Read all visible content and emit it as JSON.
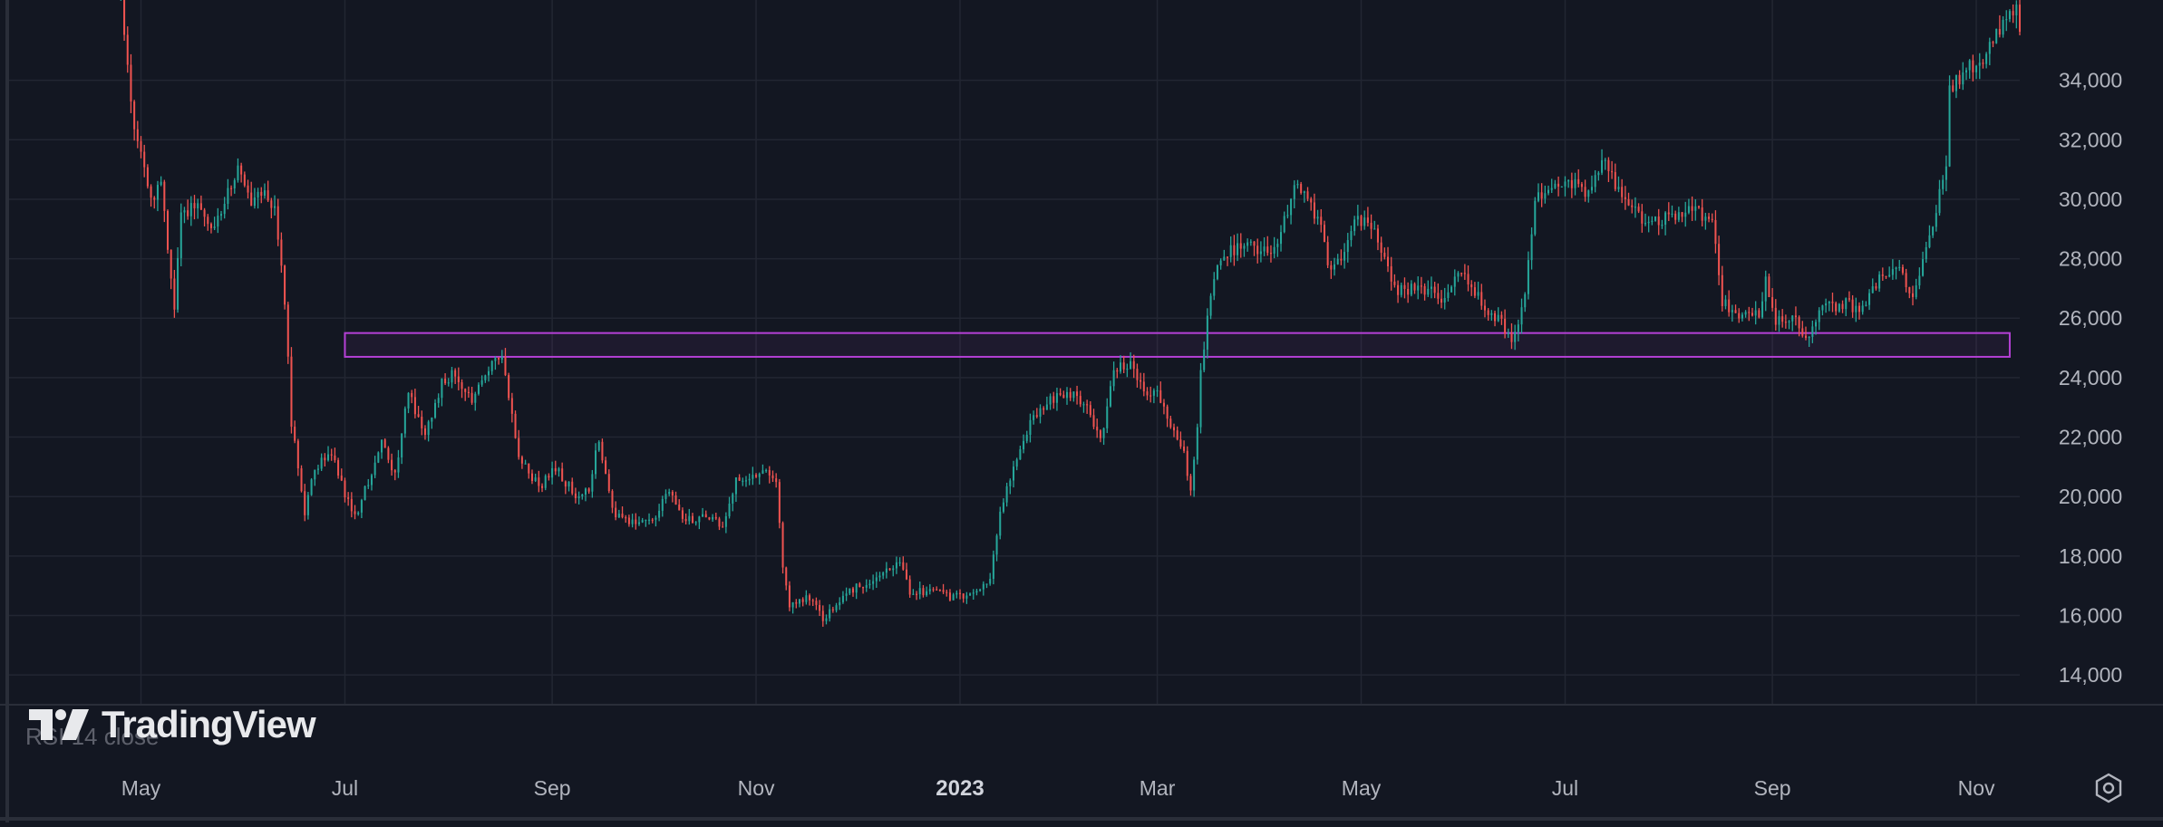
{
  "watermark": {
    "logo_icon": "tradingview-logo-icon",
    "text": "TradingView"
  },
  "indicator_label": "RSI 14 close",
  "colors": {
    "background": "#131722",
    "grid": "#222632",
    "up": "#26a69a",
    "down": "#ef5350",
    "zone": "#b540d6",
    "axis_text": "#b2b5be"
  },
  "settings_icon": "settings-hexagon-icon",
  "chart_data": {
    "type": "candlestick",
    "title": "",
    "xlabel": "",
    "ylabel": "",
    "x_range": [
      "2022-03-22",
      "2023-11-14"
    ],
    "ylim": [
      13000,
      36700
    ],
    "y_ticks": [
      14000,
      16000,
      18000,
      20000,
      22000,
      24000,
      26000,
      28000,
      30000,
      32000,
      34000
    ],
    "y_tick_labels": [
      "14,000",
      "16,000",
      "18,000",
      "20,000",
      "22,000",
      "24,000",
      "26,000",
      "28,000",
      "30,000",
      "32,000",
      "34,000"
    ],
    "x_ticks": [
      {
        "date": "2022-05-01",
        "label": "May",
        "bold": false
      },
      {
        "date": "2022-07-01",
        "label": "Jul",
        "bold": false
      },
      {
        "date": "2022-09-01",
        "label": "Sep",
        "bold": false
      },
      {
        "date": "2022-11-01",
        "label": "Nov",
        "bold": false
      },
      {
        "date": "2023-01-01",
        "label": "2023",
        "bold": true
      },
      {
        "date": "2023-03-01",
        "label": "Mar",
        "bold": false
      },
      {
        "date": "2023-05-01",
        "label": "May",
        "bold": false
      },
      {
        "date": "2023-07-01",
        "label": "Jul",
        "bold": false
      },
      {
        "date": "2023-09-01",
        "label": "Sep",
        "bold": false
      },
      {
        "date": "2023-11-01",
        "label": "Nov",
        "bold": false
      }
    ],
    "grid": true,
    "close_path": [
      [
        "2022-04-25",
        36800
      ],
      [
        "2022-04-28",
        33000
      ],
      [
        "2022-05-01",
        31500
      ],
      [
        "2022-05-04",
        30000
      ],
      [
        "2022-05-07",
        30500
      ],
      [
        "2022-05-09",
        28500
      ],
      [
        "2022-05-11",
        26500
      ],
      [
        "2022-05-13",
        29500
      ],
      [
        "2022-05-18",
        29800
      ],
      [
        "2022-05-22",
        28800
      ],
      [
        "2022-05-26",
        30000
      ],
      [
        "2022-05-30",
        31000
      ],
      [
        "2022-06-03",
        30000
      ],
      [
        "2022-06-07",
        30200
      ],
      [
        "2022-06-10",
        29800
      ],
      [
        "2022-06-13",
        26500
      ],
      [
        "2022-06-15",
        22500
      ],
      [
        "2022-06-17",
        21000
      ],
      [
        "2022-06-19",
        19500
      ],
      [
        "2022-06-22",
        21000
      ],
      [
        "2022-06-27",
        21500
      ],
      [
        "2022-07-01",
        20000
      ],
      [
        "2022-07-04",
        19300
      ],
      [
        "2022-07-08",
        20500
      ],
      [
        "2022-07-12",
        21800
      ],
      [
        "2022-07-16",
        20800
      ],
      [
        "2022-07-20",
        23500
      ],
      [
        "2022-07-25",
        22000
      ],
      [
        "2022-07-30",
        23800
      ],
      [
        "2022-08-03",
        24200
      ],
      [
        "2022-08-08",
        23200
      ],
      [
        "2022-08-12",
        24000
      ],
      [
        "2022-08-15",
        24600
      ],
      [
        "2022-08-17",
        24800
      ],
      [
        "2022-08-19",
        23500
      ],
      [
        "2022-08-22",
        21400
      ],
      [
        "2022-08-28",
        20300
      ],
      [
        "2022-09-02",
        21000
      ],
      [
        "2022-09-08",
        20000
      ],
      [
        "2022-09-12",
        20200
      ],
      [
        "2022-09-15",
        22000
      ],
      [
        "2022-09-19",
        19500
      ],
      [
        "2022-09-25",
        19100
      ],
      [
        "2022-10-02",
        19300
      ],
      [
        "2022-10-06",
        20300
      ],
      [
        "2022-10-10",
        19200
      ],
      [
        "2022-10-16",
        19300
      ],
      [
        "2022-10-22",
        19100
      ],
      [
        "2022-10-26",
        20500
      ],
      [
        "2022-10-30",
        20700
      ],
      [
        "2022-11-04",
        21000
      ],
      [
        "2022-11-07",
        20500
      ],
      [
        "2022-11-09",
        17500
      ],
      [
        "2022-11-11",
        16300
      ],
      [
        "2022-11-17",
        16600
      ],
      [
        "2022-11-21",
        15900
      ],
      [
        "2022-11-26",
        16500
      ],
      [
        "2022-12-01",
        17000
      ],
      [
        "2022-12-06",
        17100
      ],
      [
        "2022-12-14",
        17800
      ],
      [
        "2022-12-17",
        16800
      ],
      [
        "2022-12-24",
        16800
      ],
      [
        "2022-12-30",
        16600
      ],
      [
        "2023-01-05",
        16800
      ],
      [
        "2023-01-10",
        17200
      ],
      [
        "2023-01-13",
        19500
      ],
      [
        "2023-01-17",
        21000
      ],
      [
        "2023-01-22",
        22500
      ],
      [
        "2023-01-28",
        23200
      ],
      [
        "2023-02-02",
        23500
      ],
      [
        "2023-02-08",
        23100
      ],
      [
        "2023-02-12",
        21800
      ],
      [
        "2023-02-16",
        24200
      ],
      [
        "2023-02-21",
        24500
      ],
      [
        "2023-02-25",
        23400
      ],
      [
        "2023-03-01",
        23500
      ],
      [
        "2023-03-05",
        22400
      ],
      [
        "2023-03-09",
        21600
      ],
      [
        "2023-03-11",
        20100
      ],
      [
        "2023-03-13",
        22200
      ],
      [
        "2023-03-14",
        24300
      ],
      [
        "2023-03-18",
        27500
      ],
      [
        "2023-03-23",
        28300
      ],
      [
        "2023-03-29",
        28400
      ],
      [
        "2023-04-05",
        28300
      ],
      [
        "2023-04-11",
        30300
      ],
      [
        "2023-04-14",
        30400
      ],
      [
        "2023-04-19",
        28900
      ],
      [
        "2023-04-22",
        27500
      ],
      [
        "2023-04-26",
        28200
      ],
      [
        "2023-04-30",
        29400
      ],
      [
        "2023-05-04",
        29100
      ],
      [
        "2023-05-08",
        28000
      ],
      [
        "2023-05-12",
        26900
      ],
      [
        "2023-05-18",
        27000
      ],
      [
        "2023-05-26",
        26700
      ],
      [
        "2023-05-30",
        27700
      ],
      [
        "2023-06-03",
        27200
      ],
      [
        "2023-06-06",
        26500
      ],
      [
        "2023-06-12",
        25900
      ],
      [
        "2023-06-15",
        25000
      ],
      [
        "2023-06-19",
        26800
      ],
      [
        "2023-06-22",
        30000
      ],
      [
        "2023-06-27",
        30300
      ],
      [
        "2023-07-03",
        30600
      ],
      [
        "2023-07-07",
        30200
      ],
      [
        "2023-07-13",
        31300
      ],
      [
        "2023-07-18",
        30000
      ],
      [
        "2023-07-25",
        29300
      ],
      [
        "2023-08-01",
        29400
      ],
      [
        "2023-08-08",
        29700
      ],
      [
        "2023-08-14",
        29300
      ],
      [
        "2023-08-17",
        26600
      ],
      [
        "2023-08-22",
        26000
      ],
      [
        "2023-08-28",
        26100
      ],
      [
        "2023-08-30",
        27300
      ],
      [
        "2023-09-02",
        25900
      ],
      [
        "2023-09-08",
        25900
      ],
      [
        "2023-09-11",
        25200
      ],
      [
        "2023-09-15",
        26300
      ],
      [
        "2023-09-22",
        26500
      ],
      [
        "2023-09-27",
        26300
      ],
      [
        "2023-10-01",
        27000
      ],
      [
        "2023-10-08",
        27900
      ],
      [
        "2023-10-13",
        26800
      ],
      [
        "2023-10-17",
        28300
      ],
      [
        "2023-10-20",
        29700
      ],
      [
        "2023-10-23",
        31000
      ],
      [
        "2023-10-24",
        33800
      ],
      [
        "2023-10-29",
        34300
      ],
      [
        "2023-11-03",
        34800
      ],
      [
        "2023-11-06",
        35300
      ],
      [
        "2023-11-09",
        35900
      ],
      [
        "2023-11-13",
        36600
      ],
      [
        "2023-11-14",
        35500
      ]
    ],
    "zone": {
      "from_date": "2022-07-01",
      "to_date": "2023-11-11",
      "low": 24700,
      "high": 25500
    }
  }
}
